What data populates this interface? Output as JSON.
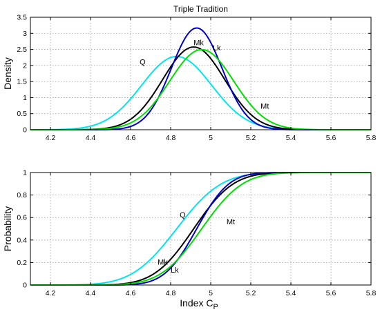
{
  "chart_data": [
    {
      "type": "line",
      "title": "Triple Tradition",
      "ylabel": "Density",
      "xlabel": "",
      "xlim": [
        4.1,
        5.8
      ],
      "ylim": [
        0,
        3.5
      ],
      "xticks": [
        "4.2",
        "4.4",
        "4.6",
        "4.8",
        "5",
        "5.2",
        "5.4",
        "5.6",
        "5.8"
      ],
      "yticks": [
        "0",
        "0.5",
        "1",
        "1.5",
        "2",
        "2.5",
        "3",
        "3.5"
      ],
      "grid": true,
      "series": [
        {
          "name": "Q",
          "color": "#00e5ee",
          "mean": 4.83,
          "sd": 0.175
        },
        {
          "name": "Mk",
          "color": "#000000",
          "mean": 4.915,
          "sd": 0.155
        },
        {
          "name": "Lk",
          "color": "#0000cc",
          "mean": 4.93,
          "sd": 0.126
        },
        {
          "name": "Mt",
          "color": "#00dd00",
          "mean": 4.955,
          "sd": 0.16
        }
      ],
      "annotations": [
        {
          "text": "Q",
          "x": 4.66,
          "y": 2.03
        },
        {
          "text": "Mk",
          "x": 4.94,
          "y": 2.63
        },
        {
          "text": "Lk",
          "x": 5.03,
          "y": 2.47
        },
        {
          "text": "Mt",
          "x": 5.27,
          "y": 0.65
        }
      ]
    },
    {
      "type": "line",
      "title": "",
      "ylabel": "Probability",
      "xlabel": "Index C",
      "xlabel_sub": "P",
      "xlim": [
        4.1,
        5.8
      ],
      "ylim": [
        0,
        1
      ],
      "xticks": [
        "4.2",
        "4.4",
        "4.6",
        "4.8",
        "5",
        "5.2",
        "5.4",
        "5.6",
        "5.8"
      ],
      "yticks": [
        "0",
        "0.2",
        "0.4",
        "0.6",
        "0.8",
        "1"
      ],
      "grid": true,
      "series": [
        {
          "name": "Q",
          "color": "#00e5ee",
          "mean": 4.83,
          "sd": 0.175
        },
        {
          "name": "Mk",
          "color": "#000000",
          "mean": 4.915,
          "sd": 0.155
        },
        {
          "name": "Lk",
          "color": "#0000cc",
          "mean": 4.93,
          "sd": 0.126
        },
        {
          "name": "Mt",
          "color": "#00dd00",
          "mean": 4.955,
          "sd": 0.16
        }
      ],
      "annotations": [
        {
          "text": "Q",
          "x": 4.86,
          "y": 0.6
        },
        {
          "text": "Mt",
          "x": 5.1,
          "y": 0.54
        },
        {
          "text": "Mk",
          "x": 4.76,
          "y": 0.18
        },
        {
          "text": "Lk",
          "x": 4.82,
          "y": 0.11
        }
      ]
    }
  ]
}
